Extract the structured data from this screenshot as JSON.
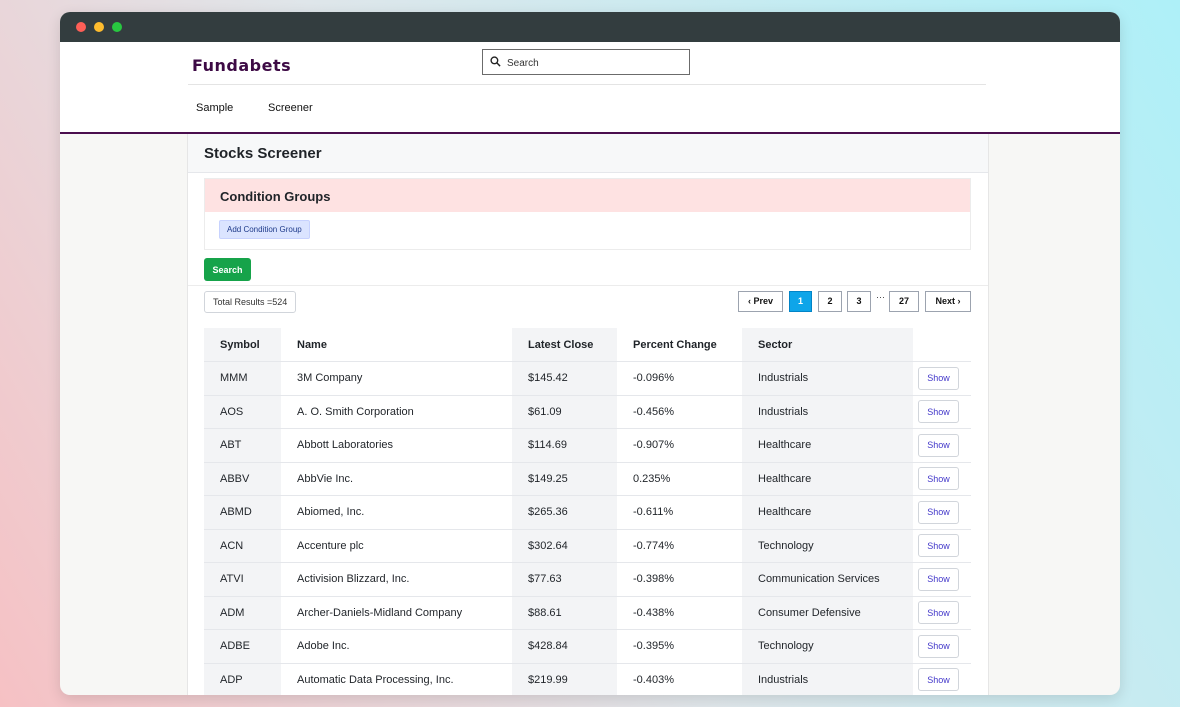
{
  "brand": {
    "logo": "Fundabets",
    "accent_color": "#4a0e4e"
  },
  "search": {
    "placeholder": "Search"
  },
  "nav": {
    "items": [
      {
        "label": "Sample"
      },
      {
        "label": "Screener"
      }
    ]
  },
  "page": {
    "title": "Stocks Screener"
  },
  "condition_groups": {
    "title": "Condition Groups",
    "add_label": "Add Condition Group"
  },
  "actions": {
    "search_label": "Search"
  },
  "results": {
    "total_text": "Total Results =524"
  },
  "pagination": {
    "prev": "‹ Prev",
    "pages": [
      "1",
      "2",
      "3"
    ],
    "ellipsis": "···",
    "last": "27",
    "next": "Next ›",
    "current": "1"
  },
  "table": {
    "columns": [
      "Symbol",
      "Name",
      "Latest Close",
      "Percent Change",
      "Sector"
    ],
    "show_label": "Show",
    "rows": [
      {
        "symbol": "MMM",
        "name": "3M Company",
        "close": "$145.42",
        "change": "-0.096%",
        "sector": "Industrials"
      },
      {
        "symbol": "AOS",
        "name": "A. O. Smith Corporation",
        "close": "$61.09",
        "change": "-0.456%",
        "sector": "Industrials"
      },
      {
        "symbol": "ABT",
        "name": "Abbott Laboratories",
        "close": "$114.69",
        "change": "-0.907%",
        "sector": "Healthcare"
      },
      {
        "symbol": "ABBV",
        "name": "AbbVie Inc.",
        "close": "$149.25",
        "change": "0.235%",
        "sector": "Healthcare"
      },
      {
        "symbol": "ABMD",
        "name": "Abiomed, Inc.",
        "close": "$265.36",
        "change": "-0.611%",
        "sector": "Healthcare"
      },
      {
        "symbol": "ACN",
        "name": "Accenture plc",
        "close": "$302.64",
        "change": "-0.774%",
        "sector": "Technology"
      },
      {
        "symbol": "ATVI",
        "name": "Activision Blizzard, Inc.",
        "close": "$77.63",
        "change": "-0.398%",
        "sector": "Communication Services"
      },
      {
        "symbol": "ADM",
        "name": "Archer-Daniels-Midland Company",
        "close": "$88.61",
        "change": "-0.438%",
        "sector": "Consumer Defensive"
      },
      {
        "symbol": "ADBE",
        "name": "Adobe Inc.",
        "close": "$428.84",
        "change": "-0.395%",
        "sector": "Technology"
      },
      {
        "symbol": "ADP",
        "name": "Automatic Data Processing, Inc.",
        "close": "$219.99",
        "change": "-0.403%",
        "sector": "Industrials"
      }
    ]
  }
}
